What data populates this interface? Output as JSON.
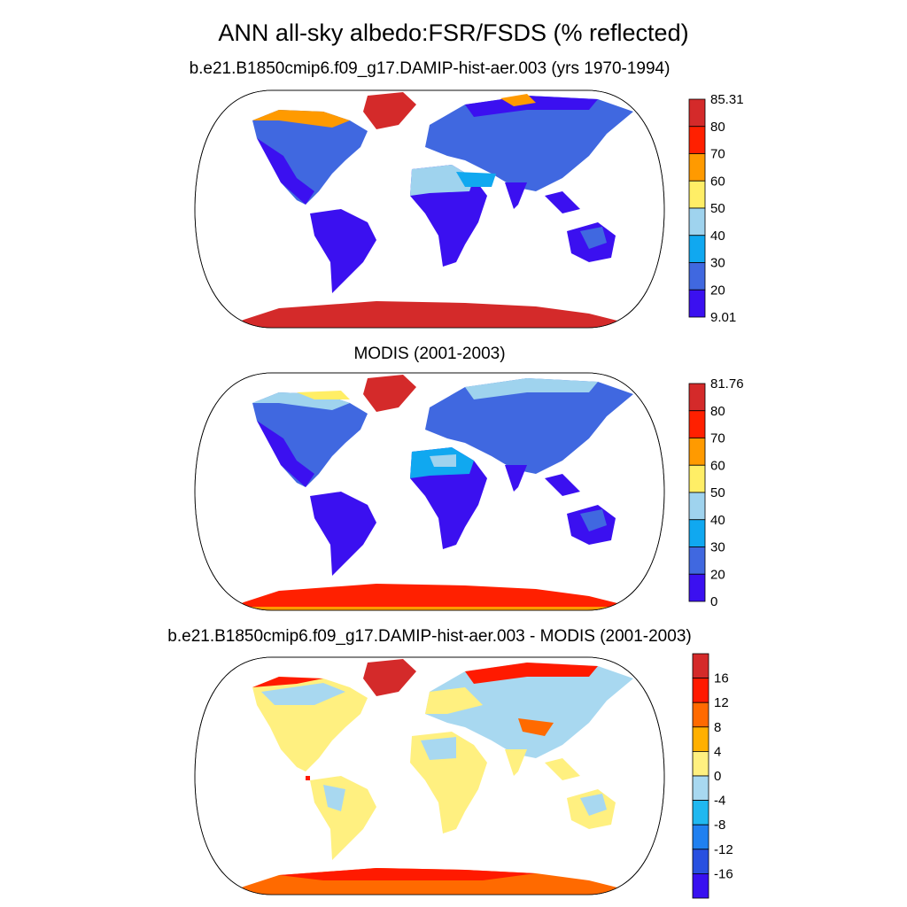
{
  "title": "ANN all-sky albedo:FSR/FSDS (% reflected)",
  "panels": [
    {
      "title": "b.e21.B1850cmip6.f09_g17.DAMIP-hist-aer.003 (yrs 1970-1994)",
      "colorbar": {
        "labels": [
          "85.31",
          "80",
          "70",
          "60",
          "50",
          "40",
          "30",
          "20",
          "9.01"
        ],
        "colors": [
          "#d42a2a",
          "#ff2000",
          "#ff9a00",
          "#ffee66",
          "#9fd3ee",
          "#10a8f0",
          "#4068e0",
          "#3b10f0"
        ]
      }
    },
    {
      "title": "MODIS (2001-2003)",
      "colorbar": {
        "labels": [
          "81.76",
          "80",
          "70",
          "60",
          "50",
          "40",
          "30",
          "20",
          "0"
        ],
        "colors": [
          "#d42a2a",
          "#ff2000",
          "#ff9a00",
          "#ffee66",
          "#9fd3ee",
          "#10a8f0",
          "#4068e0",
          "#3b10f0"
        ]
      }
    },
    {
      "title": "b.e21.B1850cmip6.f09_g17.DAMIP-hist-aer.003 - MODIS (2001-2003)",
      "colorbar": {
        "labels": [
          "",
          "16",
          "12",
          "8",
          "4",
          "0",
          "-4",
          "-8",
          "-12",
          "-16",
          ""
        ],
        "colors": [
          "#d42a2a",
          "#ff1a00",
          "#ff6a00",
          "#ffb000",
          "#fff080",
          "#a8d8f0",
          "#20b8f0",
          "#2080f0",
          "#2850e0",
          "#3810f0"
        ]
      }
    }
  ]
}
